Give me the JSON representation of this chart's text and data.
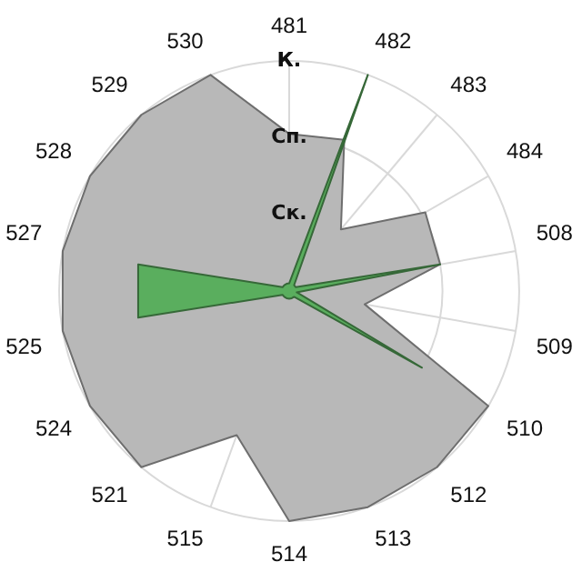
{
  "chart_data": {
    "type": "radar",
    "categories": [
      "481",
      "482",
      "483",
      "484",
      "508",
      "509",
      "510",
      "512",
      "513",
      "514",
      "515",
      "521",
      "524",
      "525",
      "527",
      "528",
      "529",
      "530"
    ],
    "series": [
      {
        "color": "#b8b8b8",
        "values": [
          2.05,
          2.1,
          1.05,
          2.05,
          2,
          1,
          3,
          3,
          3,
          3,
          2,
          3,
          3,
          3,
          3,
          3,
          3,
          3
        ]
      },
      {
        "color": "#5aae5e",
        "values": [
          0.1,
          3,
          0.1,
          0.1,
          2,
          0.1,
          2,
          0.1,
          0.1,
          0.1,
          0.1,
          0.1,
          0.1,
          2,
          2,
          0.1,
          0.1,
          0.1
        ]
      }
    ],
    "ylim": [
      0,
      3
    ],
    "yticks": [
      {
        "value": 1,
        "label": "Ск."
      },
      {
        "value": 2,
        "label": "Сп."
      },
      {
        "value": 3,
        "label": "К."
      }
    ],
    "grid": true,
    "legend": false,
    "marker": "none"
  }
}
